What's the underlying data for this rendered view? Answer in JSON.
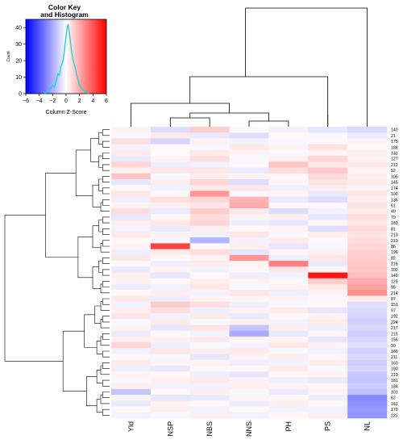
{
  "chart_data": [
    {
      "type": "histogram",
      "title": "Color Key and Histogram",
      "title_lines": [
        "Color Key",
        "and Histogram"
      ],
      "xlabel": "Column Z-Score",
      "ylabel": "Count",
      "xlim": [
        -6,
        6
      ],
      "ylim": [
        0,
        45
      ],
      "x_ticks": [
        -6,
        -4,
        -2,
        0,
        2,
        4,
        6
      ],
      "y_ticks": [
        0,
        10,
        20,
        30,
        40
      ],
      "color_scale": {
        "low": "#0000ff",
        "mid": "#ffffff",
        "high": "#ff0000"
      },
      "trace_color": "#22d3d3",
      "density": {
        "x": [
          -3.2,
          -2.9,
          -2.6,
          -2.3,
          -2.0,
          -1.7,
          -1.4,
          -1.2,
          -1.0,
          -0.8,
          -0.6,
          -0.4,
          -0.2,
          0.0,
          0.15,
          0.3,
          0.45,
          0.6,
          0.8,
          1.0,
          1.2,
          1.4,
          1.6,
          1.8,
          2.0,
          2.3,
          2.6,
          3.0,
          3.4
        ],
        "y": [
          0,
          1,
          2,
          3,
          5,
          4,
          9,
          12,
          11,
          16,
          18,
          21,
          28,
          35,
          40,
          42,
          38,
          33,
          26,
          21,
          18,
          15,
          11,
          8,
          5,
          3,
          2,
          1,
          0
        ]
      }
    },
    {
      "type": "heatmap",
      "columns": [
        "Yld",
        "NSP",
        "NBS",
        "NNS",
        "PH",
        "PS",
        "NL"
      ],
      "rows": [
        "140",
        "21",
        "175",
        "188",
        "131",
        "127",
        "212",
        "52",
        "105",
        "145",
        "174",
        "100",
        "136",
        "61",
        "49",
        "79",
        "183",
        "81",
        "213",
        "219",
        "86",
        "196",
        "82",
        "218",
        "102",
        "149",
        "129",
        "95",
        "214",
        "87",
        "151",
        "97",
        "192",
        "224",
        "217",
        "215",
        "156",
        "99",
        "169",
        "211",
        "160",
        "190",
        "210",
        "181",
        "184",
        "101",
        "62",
        "161",
        "179",
        "221"
      ],
      "color_scale": {
        "low": "#0000ff",
        "mid": "#ffffff",
        "high": "#ff0000",
        "range": [
          -6,
          6
        ]
      },
      "values": [
        [
          0.3,
          -0.8,
          1.2,
          0.2,
          -0.3,
          -0.6,
          -0.9
        ],
        [
          -0.2,
          0.5,
          -0.5,
          -0.8,
          0.2,
          -0.2,
          -0.5
        ],
        [
          0.8,
          -1.0,
          0.3,
          -0.3,
          -0.2,
          0.2,
          0.3
        ],
        [
          -0.3,
          0.2,
          -0.2,
          0.5,
          0.3,
          0.7,
          0.2
        ],
        [
          0.5,
          0.1,
          0.5,
          0.3,
          -0.2,
          0.3,
          0.4
        ],
        [
          -0.5,
          0.3,
          0.8,
          -0.2,
          0.4,
          1.0,
          0.3
        ],
        [
          1.0,
          -0.4,
          -0.3,
          0.2,
          1.4,
          0.5,
          0.5
        ],
        [
          0.3,
          0.6,
          0.6,
          -0.5,
          0.8,
          1.3,
          0.3
        ],
        [
          1.4,
          -0.2,
          0.4,
          0.3,
          0.2,
          0.9,
          0.4
        ],
        [
          -0.6,
          0.4,
          1.0,
          -0.8,
          0.3,
          0.6,
          0.5
        ],
        [
          0.2,
          -0.3,
          0.5,
          0.6,
          -0.4,
          0.4,
          0.3
        ],
        [
          0.6,
          0.2,
          2.5,
          -0.2,
          0.3,
          -0.5,
          0.6
        ],
        [
          -0.4,
          0.8,
          1.0,
          1.8,
          -0.5,
          -0.8,
          0.4
        ],
        [
          0.3,
          0.4,
          0.6,
          2.0,
          0.2,
          0.2,
          0.7
        ],
        [
          0.8,
          -0.5,
          1.2,
          0.5,
          -0.8,
          -0.3,
          0.5
        ],
        [
          -0.6,
          0.2,
          0.8,
          0.3,
          0.4,
          -0.6,
          0.8
        ],
        [
          0.4,
          0.6,
          1.0,
          -0.4,
          -0.6,
          0.2,
          0.6
        ],
        [
          -0.3,
          -0.5,
          0.4,
          0.2,
          0.3,
          -0.8,
          0.9
        ],
        [
          0.5,
          0.3,
          -0.3,
          0.6,
          -0.2,
          0.4,
          0.7
        ],
        [
          0.2,
          -0.2,
          -1.8,
          -0.3,
          0.5,
          0.2,
          0.8
        ],
        [
          0.3,
          4.5,
          0.2,
          0.4,
          -0.6,
          -0.2,
          1.0
        ],
        [
          -0.4,
          0.5,
          0.8,
          -0.6,
          0.3,
          0.3,
          1.1
        ],
        [
          0.6,
          0.2,
          0.3,
          2.5,
          -0.4,
          0.6,
          1.2
        ],
        [
          0.2,
          -0.4,
          0.5,
          0.3,
          3.0,
          -0.5,
          1.3
        ],
        [
          -0.5,
          0.3,
          -0.3,
          0.2,
          0.6,
          0.2,
          1.4
        ],
        [
          0.4,
          -0.6,
          0.2,
          -0.4,
          -0.3,
          5.5,
          1.5
        ],
        [
          0.3,
          0.2,
          0.4,
          0.3,
          0.2,
          1.2,
          2.0
        ],
        [
          -0.4,
          -0.3,
          0.6,
          -0.2,
          0.3,
          0.5,
          2.2
        ],
        [
          0.2,
          0.4,
          -0.3,
          0.6,
          -0.4,
          0.3,
          2.6
        ],
        [
          0.5,
          -0.4,
          0.3,
          0.2,
          0.3,
          -0.2,
          0.4
        ],
        [
          -0.3,
          1.2,
          0.8,
          -0.4,
          -0.2,
          0.2,
          -0.8
        ],
        [
          0.4,
          0.8,
          -0.4,
          0.3,
          0.5,
          -0.6,
          -0.9
        ],
        [
          0.6,
          -0.3,
          0.5,
          -0.5,
          0.2,
          0.3,
          -1.0
        ],
        [
          -0.2,
          0.5,
          -0.2,
          0.4,
          -0.3,
          0.5,
          -1.1
        ],
        [
          0.3,
          -0.6,
          0.7,
          -1.4,
          0.4,
          -0.4,
          -0.9
        ],
        [
          -0.5,
          0.2,
          -0.3,
          -2.0,
          -0.5,
          0.2,
          -1.2
        ],
        [
          0.4,
          0.3,
          0.5,
          0.2,
          0.3,
          -0.6,
          -1.0
        ],
        [
          1.0,
          -0.4,
          -0.2,
          -0.3,
          0.6,
          0.3,
          -0.8
        ],
        [
          -0.3,
          0.6,
          0.4,
          0.5,
          -0.2,
          -0.3,
          -1.1
        ],
        [
          0.2,
          -0.2,
          -0.6,
          0.3,
          0.4,
          0.2,
          -0.9
        ],
        [
          0.5,
          0.3,
          0.3,
          -0.4,
          -0.3,
          0.4,
          -1.2
        ],
        [
          -0.4,
          -0.5,
          0.2,
          0.2,
          0.5,
          -0.2,
          -1.0
        ],
        [
          0.3,
          0.2,
          -0.4,
          -0.6,
          0.2,
          0.3,
          -1.3
        ],
        [
          -0.2,
          0.4,
          0.5,
          0.3,
          -0.4,
          -0.5,
          -1.4
        ],
        [
          0.4,
          -0.3,
          -0.3,
          0.4,
          0.3,
          0.2,
          -1.2
        ],
        [
          -1.4,
          0.2,
          0.4,
          -0.2,
          -0.5,
          0.3,
          -1.5
        ],
        [
          0.3,
          -0.6,
          -0.5,
          0.3,
          0.2,
          -0.4,
          -2.8
        ],
        [
          -0.5,
          0.3,
          0.2,
          -0.4,
          0.4,
          0.2,
          -2.6
        ],
        [
          0.2,
          0.4,
          -0.3,
          0.2,
          -0.3,
          -0.3,
          -2.4
        ],
        [
          -0.3,
          -0.2,
          0.4,
          -0.3,
          0.2,
          0.4,
          -2.5
        ]
      ]
    }
  ]
}
